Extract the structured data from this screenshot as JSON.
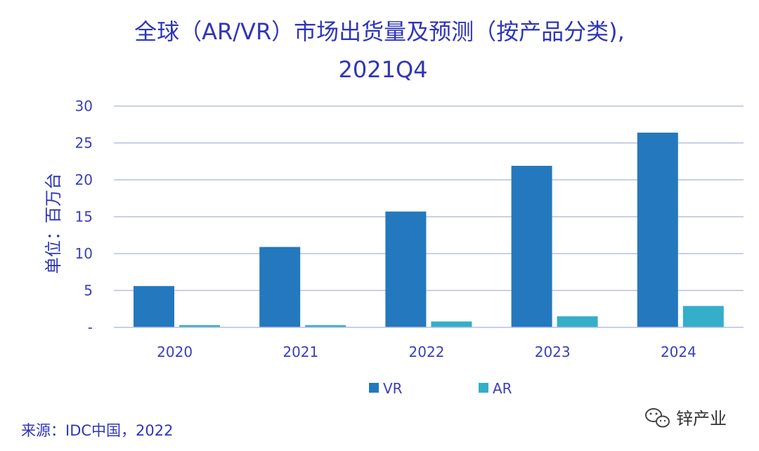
{
  "chart_data": {
    "type": "bar",
    "title_line1": "全球（AR/VR）市场出货量及预测（按产品分类),",
    "title_line2": "2021Q4",
    "ylabel": "单位：百万台",
    "categories": [
      "2020",
      "2021",
      "2022",
      "2023",
      "2024"
    ],
    "y_ticks": [
      "-",
      "5",
      "10",
      "15",
      "20",
      "25",
      "30"
    ],
    "ylim": [
      0,
      30
    ],
    "grid": true,
    "legend_position": "bottom",
    "series": [
      {
        "name": "VR",
        "color": "#2478bd",
        "values": [
          5.6,
          10.9,
          15.7,
          21.9,
          26.4
        ]
      },
      {
        "name": "AR",
        "color": "#34aec9",
        "values": [
          0.3,
          0.3,
          0.8,
          1.5,
          2.9
        ]
      }
    ]
  },
  "source": "来源：IDC中国，2022",
  "watermark": {
    "icon": "wechat-icon",
    "text": "锌产业"
  }
}
